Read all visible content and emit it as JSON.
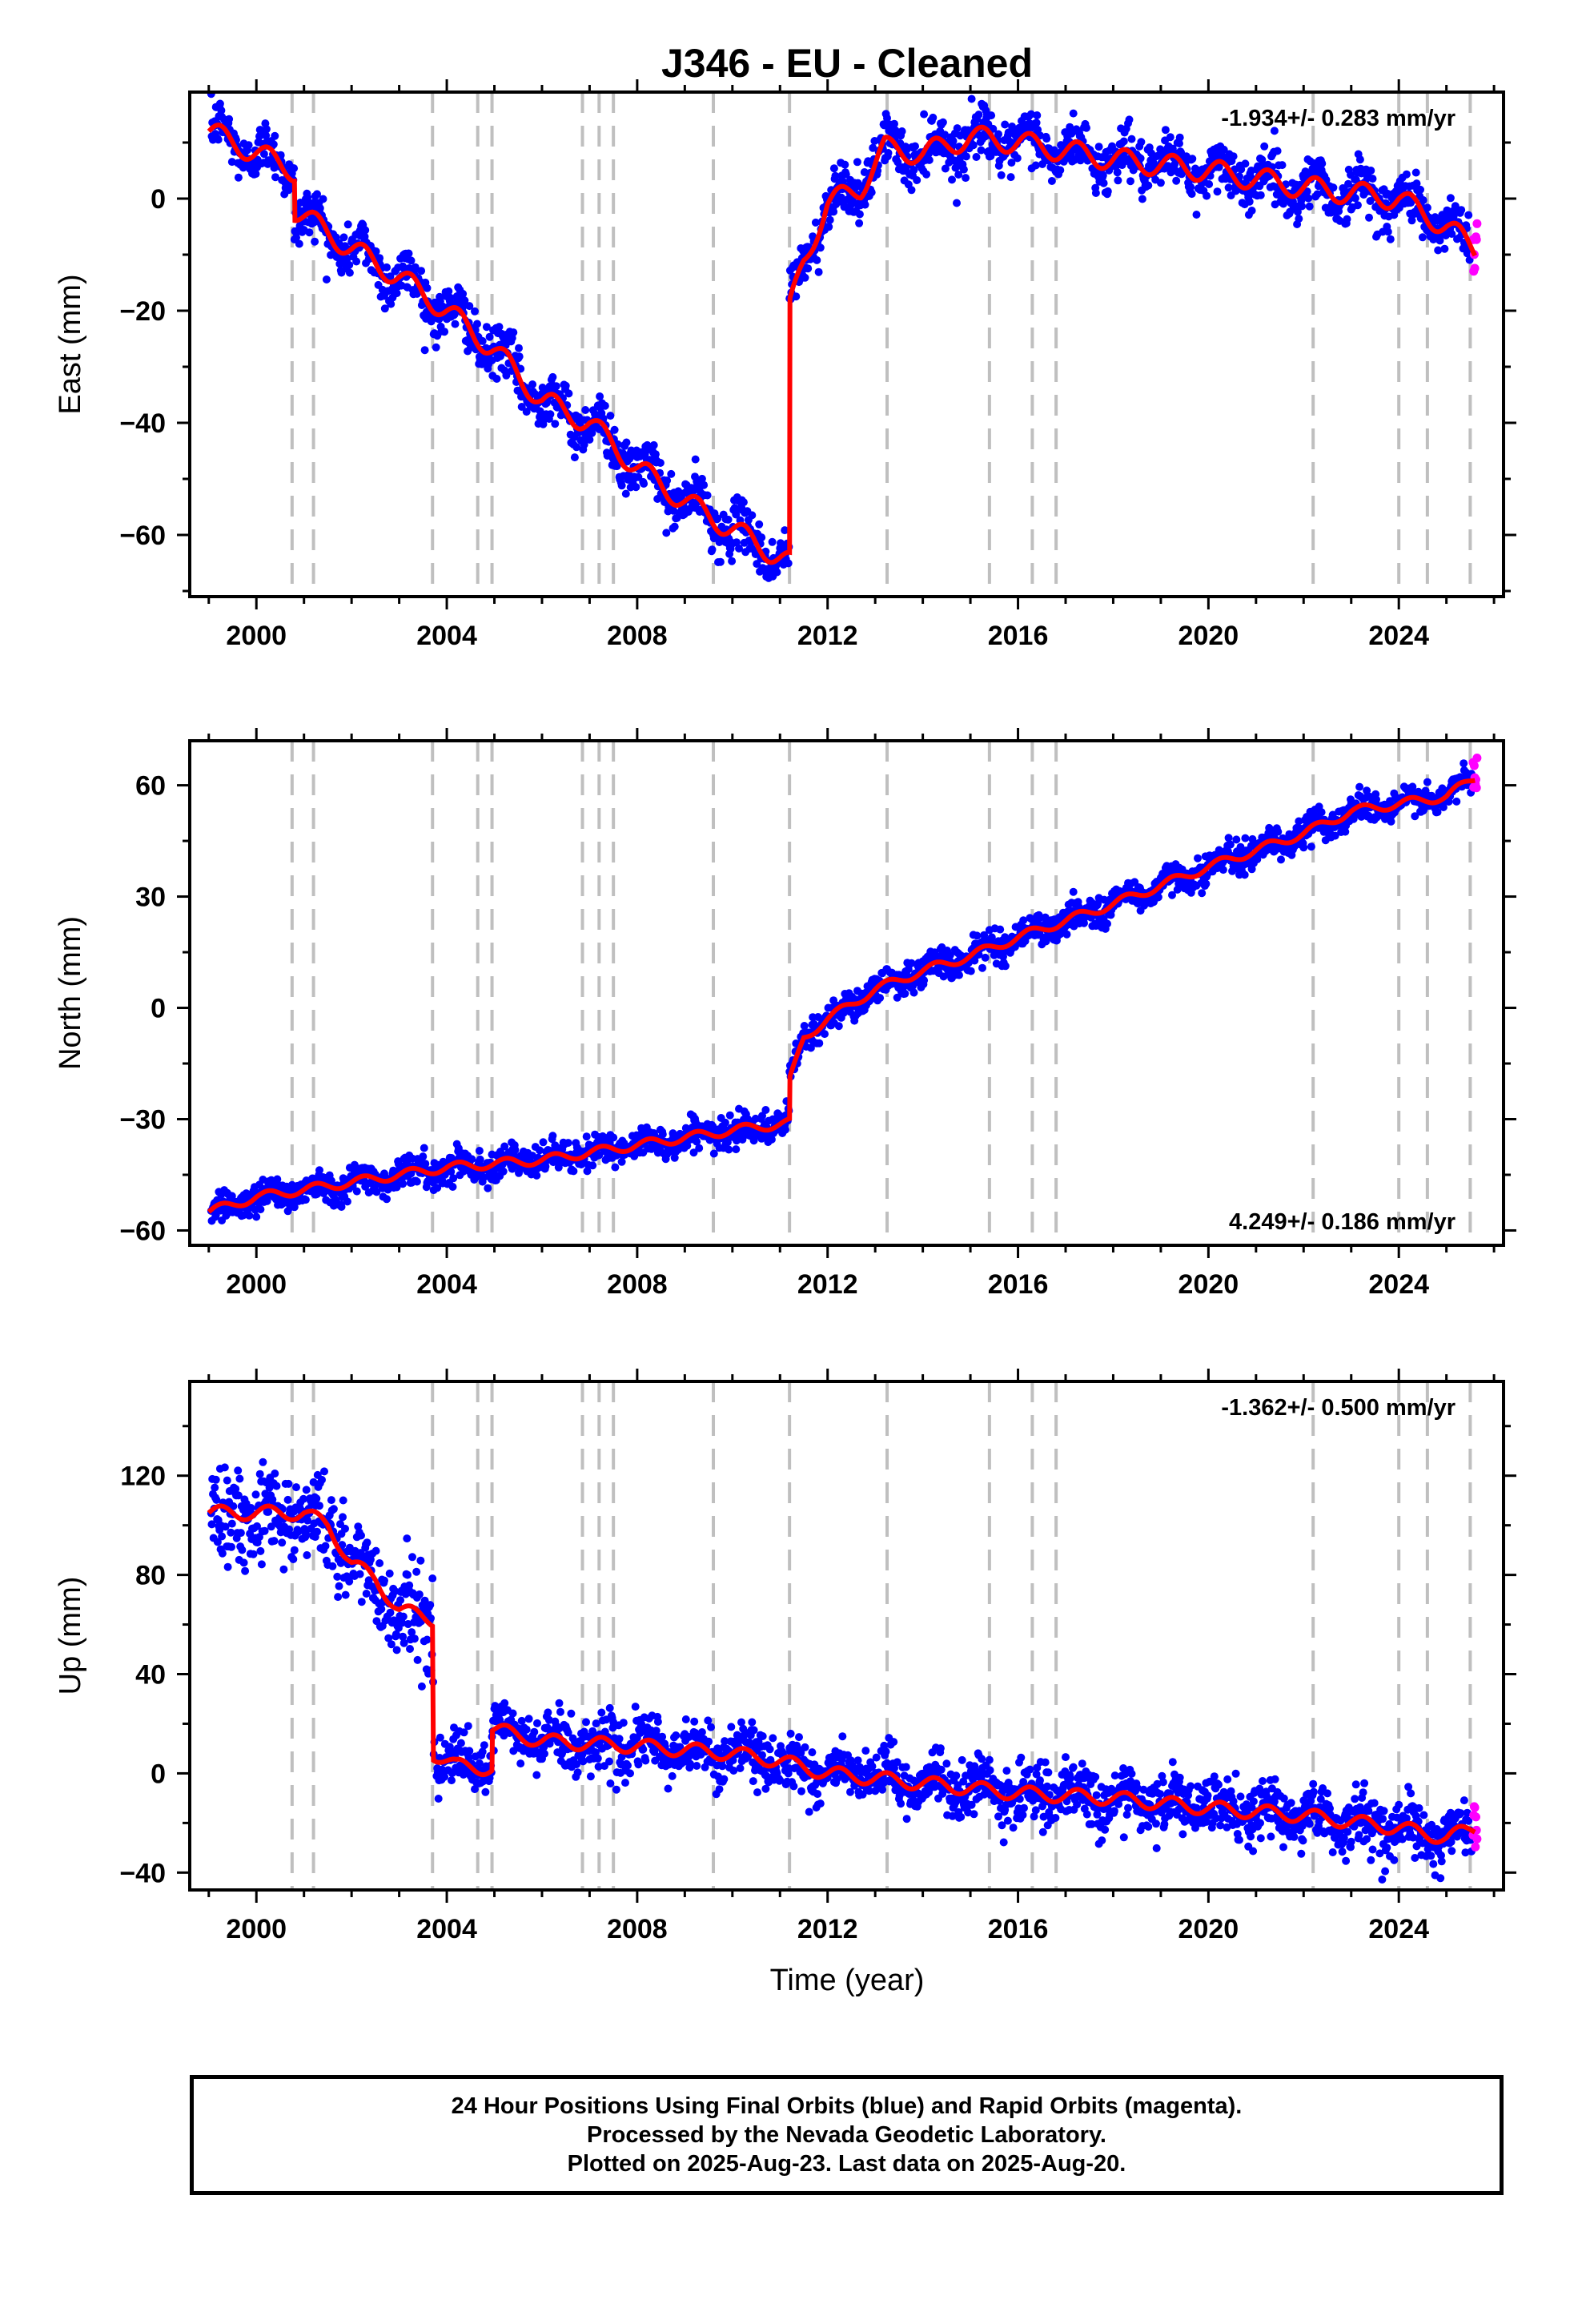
{
  "title": "J346  - EU - Cleaned",
  "xlabel": "Time (year)",
  "footer": {
    "line1": "24 Hour Positions Using Final Orbits (blue) and Rapid Orbits (magenta).",
    "line2": "Processed by the Nevada Geodetic Laboratory.",
    "line3": "Plotted on 2025-Aug-23. Last data on 2025-Aug-20."
  },
  "colors": {
    "final_orbits": "#0000ff",
    "rapid_orbits": "#ff00ff",
    "model": "#ff0000",
    "event_lines": "#bfbfbf"
  },
  "chart_data": [
    {
      "type": "scatter",
      "panel": "east",
      "ylabel": "East (mm)",
      "rate_label": "-1.934+/- 0.283 mm/yr",
      "rate_position": "top-right",
      "xlim": [
        1998.6,
        2026.2
      ],
      "ylim": [
        -71,
        19
      ],
      "xticks": [
        2000,
        2004,
        2008,
        2012,
        2016,
        2020,
        2024
      ],
      "yticks": [
        -60,
        -40,
        -20,
        0
      ],
      "event_lines": [
        2000.75,
        2001.2,
        2003.7,
        2004.65,
        2004.95,
        2006.85,
        2007.2,
        2007.5,
        2009.6,
        2011.2,
        2013.25,
        2015.4,
        2016.3,
        2016.8,
        2022.2,
        2024.0,
        2024.6,
        2025.5
      ],
      "model_trend": [
        [
          1999.0,
          12
        ],
        [
          2000.8,
          5
        ],
        [
          2000.8,
          -2
        ],
        [
          2002.0,
          -9
        ],
        [
          2003.0,
          -14
        ],
        [
          2004.0,
          -20
        ],
        [
          2005.0,
          -27
        ],
        [
          2006.0,
          -36
        ],
        [
          2007.0,
          -40
        ],
        [
          2008.0,
          -48
        ],
        [
          2009.0,
          -54
        ],
        [
          2010.0,
          -59
        ],
        [
          2011.2,
          -65
        ],
        [
          2011.2,
          -20
        ],
        [
          2011.5,
          -11
        ],
        [
          2012.0,
          -1
        ],
        [
          2012.7,
          2
        ],
        [
          2013.2,
          9
        ],
        [
          2014.0,
          8
        ],
        [
          2015.0,
          11
        ],
        [
          2016.0,
          10
        ],
        [
          2018.0,
          7
        ],
        [
          2020.0,
          5
        ],
        [
          2022.0,
          2
        ],
        [
          2024.0,
          0
        ],
        [
          2025.0,
          -5
        ],
        [
          2025.6,
          -9
        ]
      ],
      "annual_amplitude": 2.5,
      "scatter_sd": 2.2
    },
    {
      "type": "scatter",
      "panel": "north",
      "ylabel": "North (mm)",
      "rate_label": "4.249+/- 0.186 mm/yr",
      "rate_position": "bottom-right",
      "xlim": [
        1998.6,
        2026.2
      ],
      "ylim": [
        -64,
        72
      ],
      "xticks": [
        2000,
        2004,
        2008,
        2012,
        2016,
        2020,
        2024
      ],
      "yticks": [
        -60,
        -30,
        0,
        30,
        60
      ],
      "event_lines": [
        2000.75,
        2001.2,
        2003.7,
        2004.65,
        2004.95,
        2006.85,
        2007.2,
        2007.5,
        2009.6,
        2011.2,
        2013.25,
        2015.4,
        2016.3,
        2016.8,
        2022.2,
        2024.0,
        2024.6,
        2025.5
      ],
      "model_trend": [
        [
          1999.0,
          -55
        ],
        [
          2000.0,
          -51
        ],
        [
          2002.0,
          -47
        ],
        [
          2004.0,
          -43
        ],
        [
          2006.0,
          -41
        ],
        [
          2008.0,
          -37
        ],
        [
          2010.0,
          -33
        ],
        [
          2011.2,
          -31
        ],
        [
          2011.2,
          -20
        ],
        [
          2011.5,
          -8
        ],
        [
          2012.0,
          -3
        ],
        [
          2013.0,
          5
        ],
        [
          2014.0,
          10
        ],
        [
          2015.0,
          14
        ],
        [
          2016.0,
          19
        ],
        [
          2018.0,
          28
        ],
        [
          2020.0,
          38
        ],
        [
          2022.0,
          47
        ],
        [
          2023.0,
          53
        ],
        [
          2025.0,
          57
        ],
        [
          2025.6,
          62
        ]
      ],
      "annual_amplitude": 1.5,
      "scatter_sd": 2.0
    },
    {
      "type": "scatter",
      "panel": "up",
      "ylabel": "Up (mm)",
      "rate_label": "-1.362+/- 0.500 mm/yr",
      "rate_position": "top-right",
      "xlim": [
        1998.6,
        2026.2
      ],
      "ylim": [
        -47,
        158
      ],
      "xticks": [
        2000,
        2004,
        2008,
        2012,
        2016,
        2020,
        2024
      ],
      "yticks": [
        -40,
        0,
        40,
        80,
        120
      ],
      "event_lines": [
        2000.75,
        2001.2,
        2003.7,
        2004.65,
        2004.95,
        2006.85,
        2007.2,
        2007.5,
        2009.6,
        2011.2,
        2013.25,
        2015.4,
        2016.3,
        2016.8,
        2022.2,
        2024.0,
        2024.6,
        2025.5
      ],
      "model_trend": [
        [
          1999.0,
          105
        ],
        [
          2001.0,
          105
        ],
        [
          2001.5,
          100
        ],
        [
          2002.0,
          85
        ],
        [
          2002.5,
          78
        ],
        [
          2003.0,
          66
        ],
        [
          2003.7,
          62
        ],
        [
          2003.72,
          8
        ],
        [
          2004.2,
          3
        ],
        [
          2004.95,
          2
        ],
        [
          2004.95,
          18
        ],
        [
          2006.0,
          13
        ],
        [
          2008.0,
          11
        ],
        [
          2010.0,
          8
        ],
        [
          2011.0,
          5
        ],
        [
          2012.0,
          0
        ],
        [
          2014.0,
          -4
        ],
        [
          2016.0,
          -8
        ],
        [
          2018.0,
          -10
        ],
        [
          2020.0,
          -14
        ],
        [
          2022.0,
          -17
        ],
        [
          2024.0,
          -22
        ],
        [
          2025.0,
          -26
        ],
        [
          2025.6,
          -22
        ]
      ],
      "annual_amplitude": 3.5,
      "scatter_sd": 5.5
    }
  ]
}
